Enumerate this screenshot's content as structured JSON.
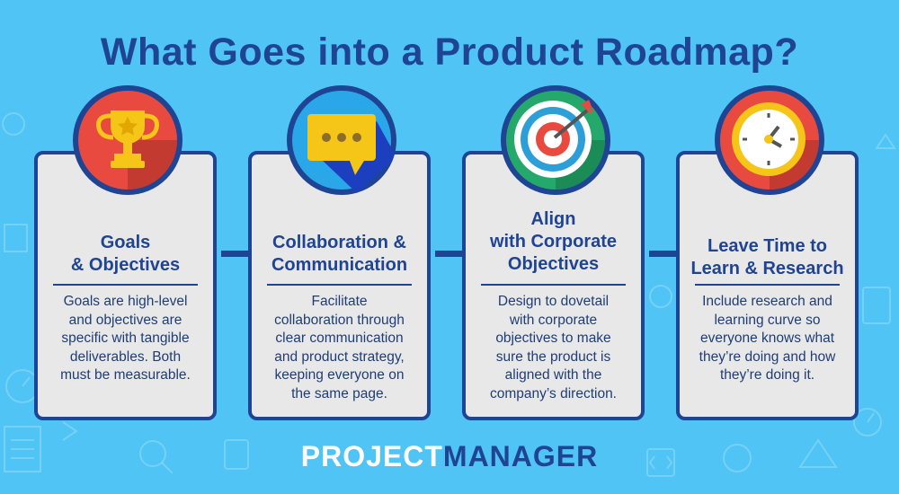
{
  "title": "What Goes into a Product Roadmap?",
  "cards": [
    {
      "icon": "trophy-icon",
      "heading_lines": [
        "Goals",
        "& Objectives"
      ],
      "body": [
        "Goals are high-level",
        "and objectives are",
        "specific with tangible",
        "deliverables. Both",
        "must be measurable."
      ]
    },
    {
      "icon": "chat-bubble-icon",
      "heading_lines": [
        "Collaboration &",
        "Communication"
      ],
      "body": [
        "Facilitate",
        "collaboration through",
        "clear communication",
        "and product strategy,",
        "keeping everyone on",
        "the same page."
      ]
    },
    {
      "icon": "target-icon",
      "heading_lines": [
        "Align",
        "with Corporate",
        "Objectives"
      ],
      "body": [
        "Design to dovetail",
        "with corporate",
        "objectives to make",
        "sure the product is",
        "aligned with the",
        "company’s direction."
      ]
    },
    {
      "icon": "clock-icon",
      "heading_lines": [
        "Leave Time to",
        "Learn & Research"
      ],
      "body": [
        "Include research and",
        "learning curve so",
        "everyone knows what",
        "they’re doing and how",
        "they’re doing it."
      ]
    }
  ],
  "brand": {
    "part1": "PROJECT",
    "part2": "MANAGER"
  },
  "colors": {
    "background": "#4fc4f5",
    "navy": "#1f4493",
    "card": "#e8e8e8"
  }
}
